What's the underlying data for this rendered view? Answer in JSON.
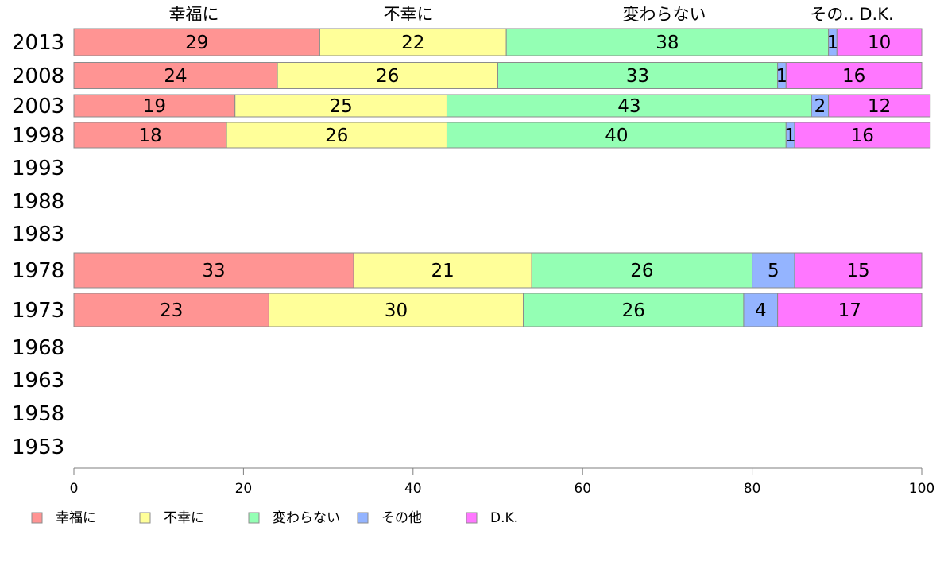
{
  "chart_data": {
    "type": "bar",
    "orientation": "horizontal",
    "stacked": true,
    "categories": [
      "2013",
      "2008",
      "2003",
      "1998",
      "1993",
      "1988",
      "1983",
      "1978",
      "1973",
      "1968",
      "1963",
      "1958",
      "1953"
    ],
    "series": [
      {
        "name": "幸福に",
        "color": "#ff9493",
        "values": [
          29,
          24,
          19,
          18,
          null,
          null,
          null,
          33,
          23,
          null,
          null,
          null,
          null
        ]
      },
      {
        "name": "不幸に",
        "color": "#ffff99",
        "values": [
          22,
          26,
          25,
          26,
          null,
          null,
          null,
          21,
          30,
          null,
          null,
          null,
          null
        ]
      },
      {
        "name": "変わらない",
        "color": "#94ffb4",
        "values": [
          38,
          33,
          43,
          40,
          null,
          null,
          null,
          26,
          26,
          null,
          null,
          null,
          null
        ]
      },
      {
        "name": "その他",
        "color": "#94b4ff",
        "values": [
          1,
          1,
          2,
          1,
          null,
          null,
          null,
          5,
          4,
          null,
          null,
          null,
          null
        ]
      },
      {
        "name": "D.K.",
        "color": "#ff77ff",
        "values": [
          10,
          16,
          12,
          16,
          null,
          null,
          null,
          15,
          17,
          null,
          null,
          null,
          null
        ]
      }
    ],
    "top_labels": [
      "幸福に",
      "不幸に",
      "変わらない",
      "その.. D.K."
    ],
    "xlim": [
      0,
      100
    ],
    "xticks": [
      0,
      20,
      40,
      60,
      80,
      100
    ],
    "grid": false,
    "legend_position": "bottom"
  }
}
